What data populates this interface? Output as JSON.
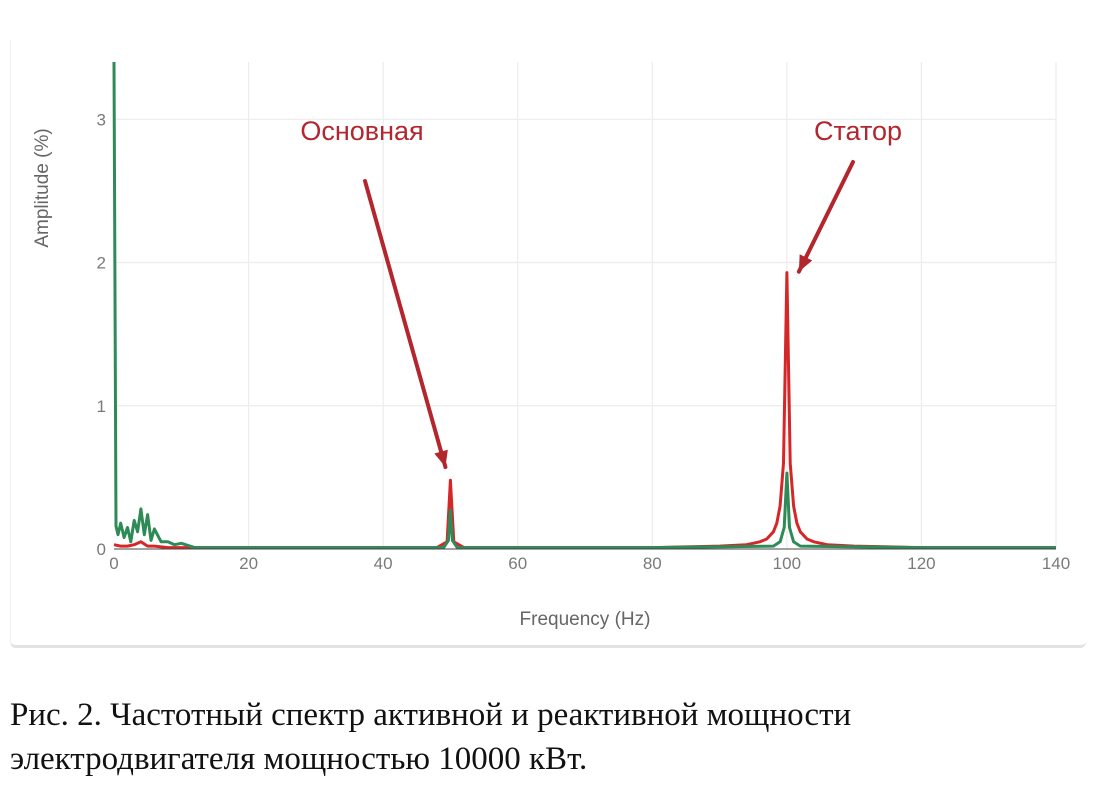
{
  "chart_data": {
    "type": "line",
    "title": "",
    "xlabel": "Frequency (Hz)",
    "ylabel": "Amplitude (%)",
    "xlim": [
      0,
      140
    ],
    "ylim": [
      0,
      3.4
    ],
    "x_ticks": [
      0,
      20,
      40,
      60,
      80,
      100,
      120,
      140
    ],
    "y_ticks": [
      0,
      1,
      2,
      3
    ],
    "grid": true,
    "legend": "none",
    "series": [
      {
        "color": "#d62728",
        "x": [
          0,
          1,
          2,
          3,
          4,
          5,
          6,
          8,
          10,
          20,
          30,
          40,
          48,
          49.5,
          50,
          50.5,
          52,
          60,
          70,
          80,
          90,
          94,
          96,
          97,
          98,
          98.5,
          99,
          99.5,
          100,
          100.5,
          101,
          101.5,
          102,
          103,
          104,
          106,
          110,
          120,
          130,
          140
        ],
        "y": [
          0.03,
          0.02,
          0.02,
          0.03,
          0.05,
          0.02,
          0.02,
          0.01,
          0.01,
          0.01,
          0.01,
          0.01,
          0.01,
          0.05,
          0.48,
          0.05,
          0.01,
          0.01,
          0.01,
          0.01,
          0.02,
          0.03,
          0.05,
          0.07,
          0.12,
          0.18,
          0.3,
          0.6,
          1.93,
          0.6,
          0.3,
          0.18,
          0.12,
          0.07,
          0.05,
          0.03,
          0.02,
          0.01,
          0.01,
          0.01
        ]
      },
      {
        "color": "#2e8b57",
        "x": [
          0,
          0.3,
          0.6,
          1,
          1.5,
          2,
          2.5,
          3,
          3.5,
          4,
          4.5,
          5,
          5.5,
          6,
          7,
          8,
          9,
          10,
          12,
          20,
          30,
          40,
          49,
          49.7,
          50,
          50.3,
          51,
          60,
          80,
          98,
          99,
          99.6,
          100,
          100.4,
          101,
          102,
          120,
          140
        ],
        "y": [
          3.4,
          0.16,
          0.1,
          0.18,
          0.08,
          0.15,
          0.05,
          0.2,
          0.12,
          0.28,
          0.1,
          0.24,
          0.06,
          0.14,
          0.05,
          0.05,
          0.03,
          0.04,
          0.01,
          0.01,
          0.01,
          0.01,
          0.01,
          0.06,
          0.27,
          0.06,
          0.01,
          0.01,
          0.01,
          0.02,
          0.05,
          0.15,
          0.53,
          0.15,
          0.05,
          0.02,
          0.01,
          0.01
        ]
      }
    ],
    "annotations": [
      {
        "text": "Основная",
        "x": 50,
        "y": 0.6
      },
      {
        "text": "Статор",
        "x": 100,
        "y": 1.95
      }
    ]
  },
  "caption": {
    "line1": "Рис. 2.  Частотный спектр активной и реактивной мощности",
    "line2": "электродвигателя мощностью 10000 кВт."
  }
}
